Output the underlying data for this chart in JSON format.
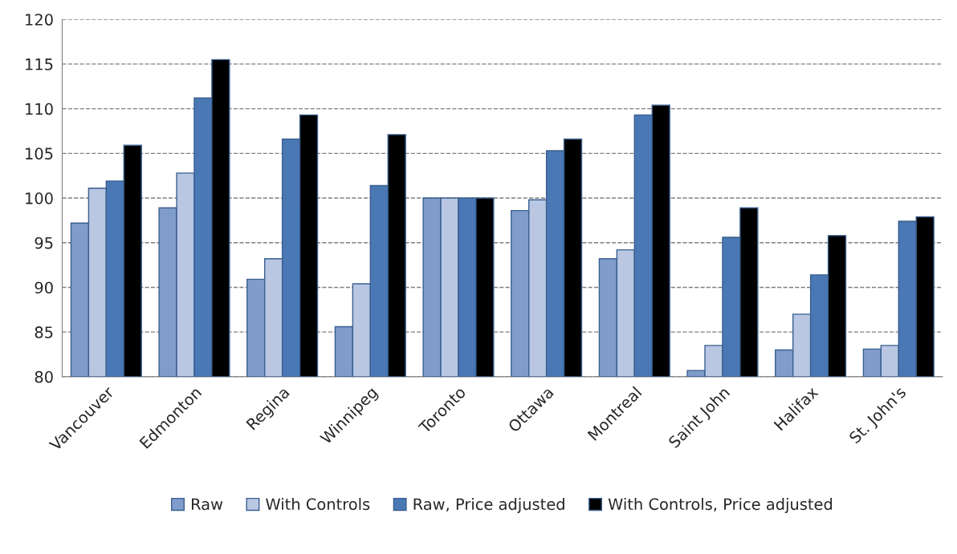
{
  "chart_data": {
    "type": "bar",
    "categories": [
      "Vancouver",
      "Edmonton",
      "Regina",
      "Winnipeg",
      "Toronto",
      "Ottawa",
      "Montreal",
      "Saint John",
      "Halifax",
      "St. John's"
    ],
    "series": [
      {
        "name": "Raw",
        "color": "#7f9ccb",
        "values": [
          97.2,
          98.9,
          90.9,
          85.6,
          100,
          98.6,
          93.2,
          80.7,
          83.0,
          83.1
        ]
      },
      {
        "name": "With Controls",
        "color": "#b9c7e3",
        "values": [
          101.1,
          102.8,
          93.2,
          90.4,
          100,
          99.8,
          94.2,
          83.5,
          87.0,
          83.5
        ]
      },
      {
        "name": "Raw, Price adjusted",
        "color": "#4a78b5",
        "values": [
          101.9,
          111.2,
          106.6,
          101.4,
          100,
          105.3,
          109.3,
          95.6,
          91.4,
          97.4
        ]
      },
      {
        "name": "With Controls, Price adjusted",
        "color": "#000000",
        "values": [
          105.9,
          115.5,
          109.3,
          107.1,
          100,
          106.6,
          110.4,
          98.9,
          95.8,
          97.9
        ]
      }
    ],
    "ylim": [
      80,
      120
    ],
    "yticks": [
      80,
      85,
      90,
      95,
      100,
      105,
      110,
      115,
      120
    ],
    "grid": "y",
    "legend": "bottom"
  }
}
